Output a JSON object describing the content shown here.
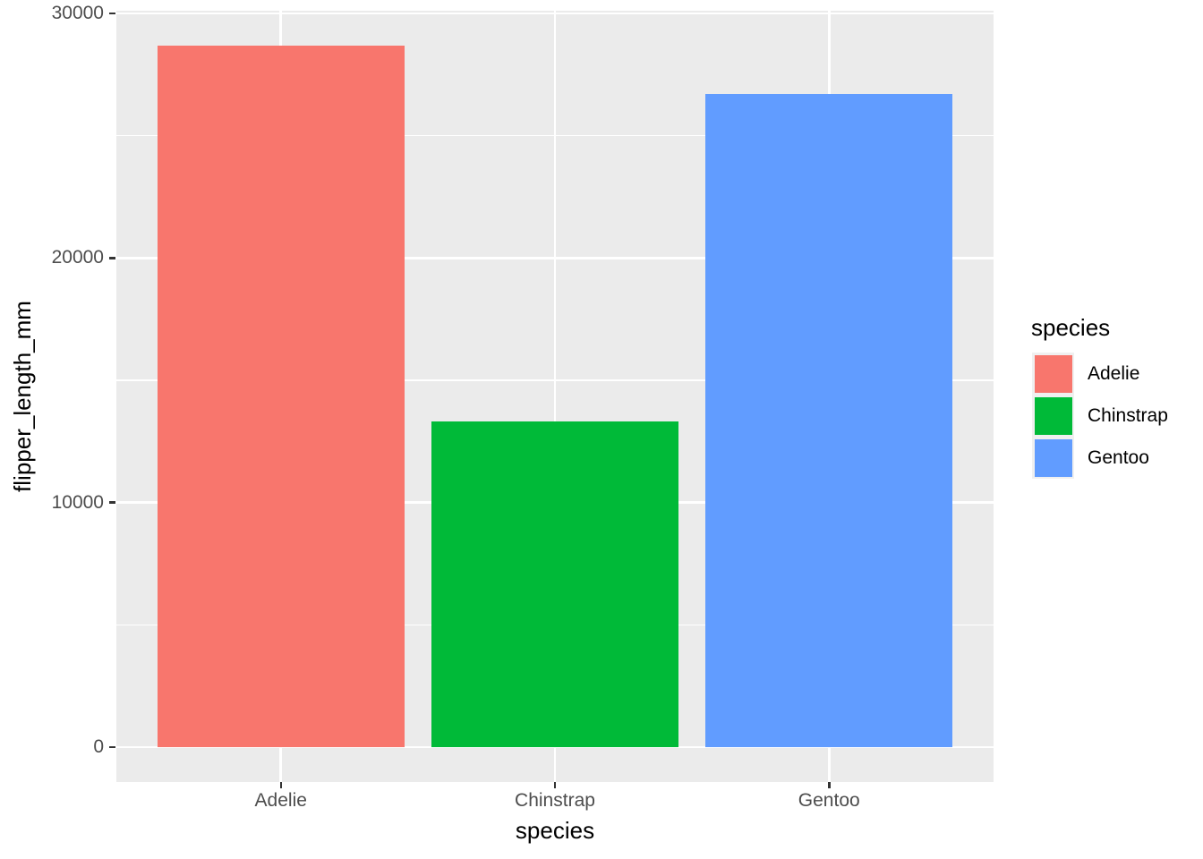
{
  "chart_data": {
    "type": "bar",
    "title": "",
    "xlabel": "species",
    "ylabel": "flipper_length_mm",
    "categories": [
      "Adelie",
      "Chinstrap",
      "Gentoo"
    ],
    "values": [
      28683,
      13316,
      26714
    ],
    "bar_colors": [
      "#F8766D",
      "#00BA38",
      "#619CFF"
    ],
    "y_ticks": [
      {
        "value": 0,
        "label": "0"
      },
      {
        "value": 10000,
        "label": "10000"
      },
      {
        "value": 20000,
        "label": "20000"
      },
      {
        "value": 30000,
        "label": "30000"
      }
    ],
    "y_minor_ticks": [
      5000,
      15000,
      25000
    ],
    "ylim": [
      0,
      30000
    ],
    "expansion_mult": 0.05,
    "grid": "on",
    "legend": {
      "title": "species",
      "position": "right",
      "entries": [
        {
          "label": "Adelie",
          "color": "#F8766D"
        },
        {
          "label": "Chinstrap",
          "color": "#00BA38"
        },
        {
          "label": "Gentoo",
          "color": "#619CFF"
        }
      ]
    },
    "theme": {
      "background": "#FFFFFF",
      "panel_bg": "#EBEBEB",
      "grid_color": "#FFFFFF",
      "tick_color": "#333333",
      "tick_label_color": "#4D4D4D",
      "axis_title_color": "#000000",
      "legend_key_bg": "#F0F0F0"
    }
  }
}
